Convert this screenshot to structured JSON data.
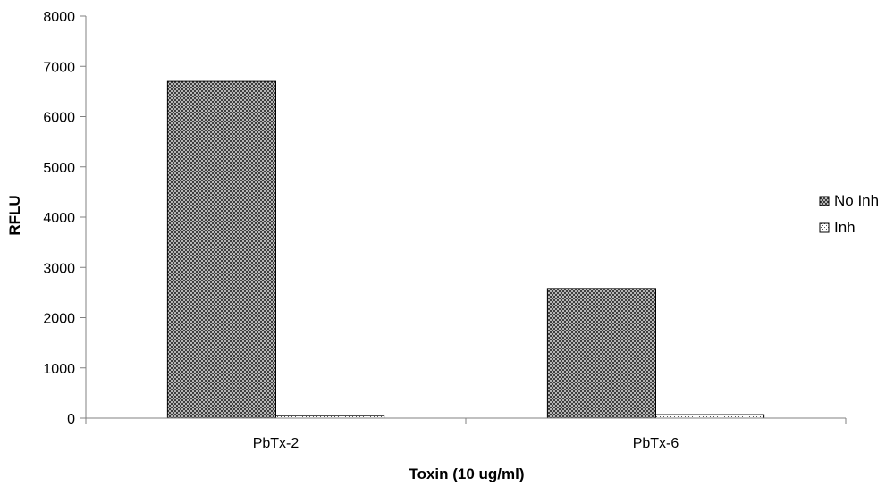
{
  "chart_data": {
    "type": "bar",
    "categories": [
      "PbTx-2",
      "PbTx-6"
    ],
    "series": [
      {
        "name": "No Inh",
        "values": [
          6700,
          2580
        ],
        "pattern": "crosshatch"
      },
      {
        "name": "Inh",
        "values": [
          50,
          70
        ],
        "pattern": "dotted"
      }
    ],
    "xlabel": "Toxin (10 ug/ml)",
    "ylabel": "RFLU",
    "ylim": [
      0,
      8000
    ],
    "yticks": [
      0,
      1000,
      2000,
      3000,
      4000,
      5000,
      6000,
      7000,
      8000
    ],
    "grid": false,
    "legend_position": "right",
    "colors": {
      "bar_stroke": "#000000",
      "axis": "#808080",
      "hatch_dark": "#3a3a3a"
    }
  }
}
